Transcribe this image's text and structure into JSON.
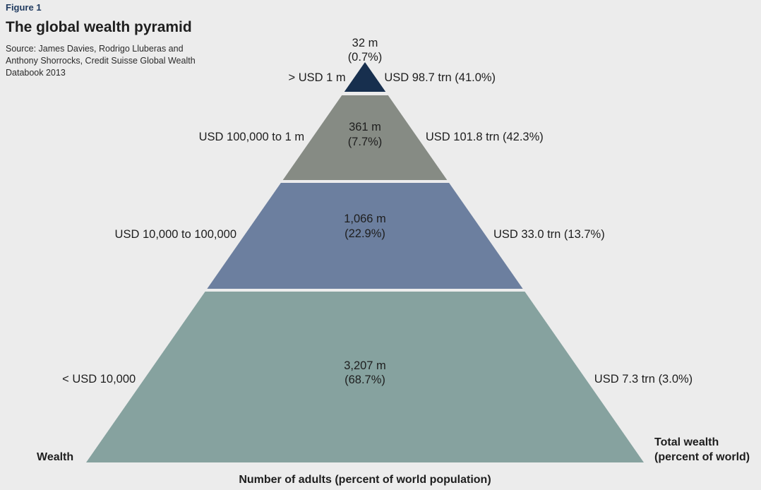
{
  "figure_label": "Figure 1",
  "title": "The global wealth pyramid",
  "source": "Source: James Davies, Rodrigo Lluberas and Anthony Shorrocks, Credit Suisse Global Wealth Databook 2013",
  "axis_labels": {
    "wealth": "Wealth",
    "total_wealth_line1": "Total wealth",
    "total_wealth_line2": "(percent of world)",
    "adults": "Number of adults (percent of world population)"
  },
  "colors": {
    "tier1": "#172f4e",
    "tier2": "#868b84",
    "tier3": "#6c7f9f",
    "tier4": "#86a29f"
  },
  "chart_data": {
    "type": "pyramid",
    "tiers": [
      {
        "wealth_band": "> USD 1 m",
        "adults": "32 m",
        "adults_pct": "(0.7%)",
        "adults_m": 32,
        "adults_share": 0.7,
        "total_wealth": "USD 98.7 trn (41.0%)",
        "wealth_trn": 98.7,
        "wealth_share": 41.0
      },
      {
        "wealth_band": "USD 100,000 to 1 m",
        "adults": "361 m",
        "adults_pct": "(7.7%)",
        "adults_m": 361,
        "adults_share": 7.7,
        "total_wealth": "USD 101.8 trn (42.3%)",
        "wealth_trn": 101.8,
        "wealth_share": 42.3
      },
      {
        "wealth_band": "USD 10,000 to 100,000",
        "adults": "1,066 m",
        "adults_pct": "(22.9%)",
        "adults_m": 1066,
        "adults_share": 22.9,
        "total_wealth": "USD 33.0 trn (13.7%)",
        "wealth_trn": 33.0,
        "wealth_share": 13.7
      },
      {
        "wealth_band": "< USD 10,000",
        "adults": "3,207 m",
        "adults_pct": "(68.7%)",
        "adults_m": 3207,
        "adults_share": 68.7,
        "total_wealth": "USD 7.3 trn (3.0%)",
        "wealth_trn": 7.3,
        "wealth_share": 3.0
      }
    ]
  }
}
